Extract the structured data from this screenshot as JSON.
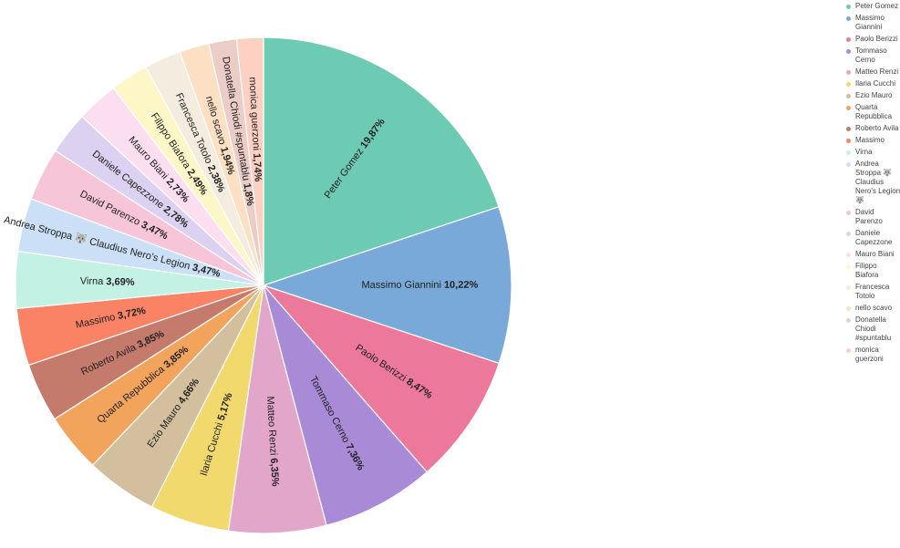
{
  "chart_data": {
    "type": "pie",
    "title": "",
    "legend_position": "right",
    "slices": [
      {
        "label": "Peter Gomez",
        "value": 19.87,
        "pct_text": "19,87%",
        "color": "#6dcbb3"
      },
      {
        "label": "Massimo Giannini",
        "value": 10.22,
        "pct_text": "10,22%",
        "color": "#79a9d8"
      },
      {
        "label": "Paolo Berizzi",
        "value": 8.47,
        "pct_text": "8,47%",
        "color": "#ec799c"
      },
      {
        "label": "Tommaso Cerno",
        "value": 7.36,
        "pct_text": "7,36%",
        "color": "#a88ad6"
      },
      {
        "label": "Matteo Renzi",
        "value": 6.35,
        "pct_text": "6,35%",
        "color": "#e3a6cb"
      },
      {
        "label": "Ilaria Cucchi",
        "value": 5.17,
        "pct_text": "5,17%",
        "color": "#f1d96e"
      },
      {
        "label": "Ezio Mauro",
        "value": 4.66,
        "pct_text": "4,66%",
        "color": "#d3bf9e"
      },
      {
        "label": "Quarta Repubblica",
        "value": 3.85,
        "pct_text": "3,85%",
        "color": "#f2a45c"
      },
      {
        "label": "Roberto Avila",
        "value": 3.85,
        "pct_text": "3,85%",
        "color": "#c47b6c"
      },
      {
        "label": "Massimo",
        "value": 3.72,
        "pct_text": "3,72%",
        "color": "#fa8265"
      },
      {
        "label": "Virna",
        "value": 3.69,
        "pct_text": "3,69%",
        "color": "#c3f1e4"
      },
      {
        "label": "Andrea Stroppa 🐺 Claudius Nero's Legion 🐺",
        "value": 3.47,
        "pct_text": "3,47%",
        "color": "#cbe0f6"
      },
      {
        "label": "David Parenzo",
        "value": 3.47,
        "pct_text": "3,47%",
        "color": "#f6c5d8"
      },
      {
        "label": "Daniele Capezzone",
        "value": 2.78,
        "pct_text": "2,78%",
        "color": "#ddd1f1"
      },
      {
        "label": "Mauro Biani",
        "value": 2.73,
        "pct_text": "2,73%",
        "color": "#fbdff0"
      },
      {
        "label": "Filippo Biafora",
        "value": 2.49,
        "pct_text": "2,49%",
        "color": "#fdf6c6"
      },
      {
        "label": "Francesca Totolo",
        "value": 2.38,
        "pct_text": "2,38%",
        "color": "#f3ecdf"
      },
      {
        "label": "nello scavo",
        "value": 1.94,
        "pct_text": "1,94%",
        "color": "#fde0c4"
      },
      {
        "label": "Donatella Chiodi #spuntablu",
        "value": 1.8,
        "pct_text": "1,8%",
        "color": "#ecccc6"
      },
      {
        "label": "monica guerzoni",
        "value": 1.74,
        "pct_text": "1,74%",
        "color": "#fdd0c2"
      }
    ],
    "pie_labels": [
      "Peter Gomez",
      "Massimo Giannini",
      "Paolo Berizzi",
      "Tommaso Cerno",
      "Matteo Renzi",
      "Ilaria Cucchi",
      "Ezio Mauro",
      "Quarta Repubblica",
      "Roberto Avila",
      "Massimo",
      "Virna",
      "Andrea Stroppa 🐺 Claudius Nero's Legion",
      "David Parenzo",
      "Daniele Capezzone",
      "Mauro Biani",
      "Filippo Biafora",
      "Francesca Totolo",
      "nello scavo",
      "Donatella Chiodi #spuntablu",
      "monica guerzoni"
    ],
    "legend_labels": [
      "Peter Gomez",
      "Massimo Giannini",
      "Paolo Berizzi",
      "Tommaso Cerno",
      "Matteo Renzi",
      "Ilaria Cucchi",
      "Ezio Mauro",
      "Quarta Repubblica",
      "Roberto Avila",
      "Massimo",
      "Virna",
      "Andrea Stroppa 🐺 Claudius Nero's Legion 🐺",
      "David Parenzo",
      "Daniele Capezzone",
      "Mauro Biani",
      "Filippo Biafora",
      "Francesca Totolo",
      "nello scavo",
      "Donatella Chiodi #spuntablu",
      "monica guerzoni"
    ]
  }
}
